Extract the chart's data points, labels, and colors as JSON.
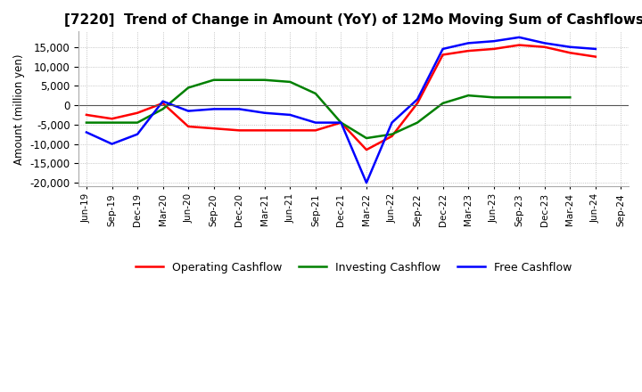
{
  "title": "[7220]  Trend of Change in Amount (YoY) of 12Mo Moving Sum of Cashflows",
  "ylabel": "Amount (million yen)",
  "ylim": [
    -21000,
    19000
  ],
  "yticks": [
    -20000,
    -15000,
    -10000,
    -5000,
    0,
    5000,
    10000,
    15000
  ],
  "x_labels": [
    "Jun-19",
    "Sep-19",
    "Dec-19",
    "Mar-20",
    "Jun-20",
    "Sep-20",
    "Dec-20",
    "Mar-21",
    "Jun-21",
    "Sep-21",
    "Dec-21",
    "Mar-22",
    "Jun-22",
    "Sep-22",
    "Dec-22",
    "Mar-23",
    "Jun-23",
    "Sep-23",
    "Dec-23",
    "Mar-24",
    "Jun-24",
    "Sep-24"
  ],
  "operating_cashflow": [
    -2500,
    -3500,
    -2000,
    500,
    -5500,
    -6000,
    -6500,
    -6500,
    -6500,
    -6500,
    -4500,
    -11500,
    -8000,
    500,
    13000,
    14000,
    14500,
    15500,
    15000,
    13500,
    12500,
    null
  ],
  "investing_cashflow": [
    -4500,
    -4500,
    -4500,
    -1000,
    4500,
    6500,
    6500,
    6500,
    6000,
    3000,
    -4500,
    -8500,
    -7500,
    -4500,
    500,
    2500,
    2000,
    2000,
    2000,
    2000,
    null,
    null
  ],
  "free_cashflow": [
    -7000,
    -10000,
    -7500,
    1000,
    -1500,
    -1000,
    -1000,
    -2000,
    -2500,
    -4500,
    -4500,
    -20000,
    -4500,
    1500,
    14500,
    16000,
    16500,
    17500,
    16000,
    15000,
    14500,
    null
  ],
  "operating_color": "#ff0000",
  "investing_color": "#008000",
  "free_color": "#0000ff",
  "background_color": "#ffffff",
  "grid_color": "#aaaaaa",
  "title_fontsize": 11,
  "legend_labels": [
    "Operating Cashflow",
    "Investing Cashflow",
    "Free Cashflow"
  ]
}
